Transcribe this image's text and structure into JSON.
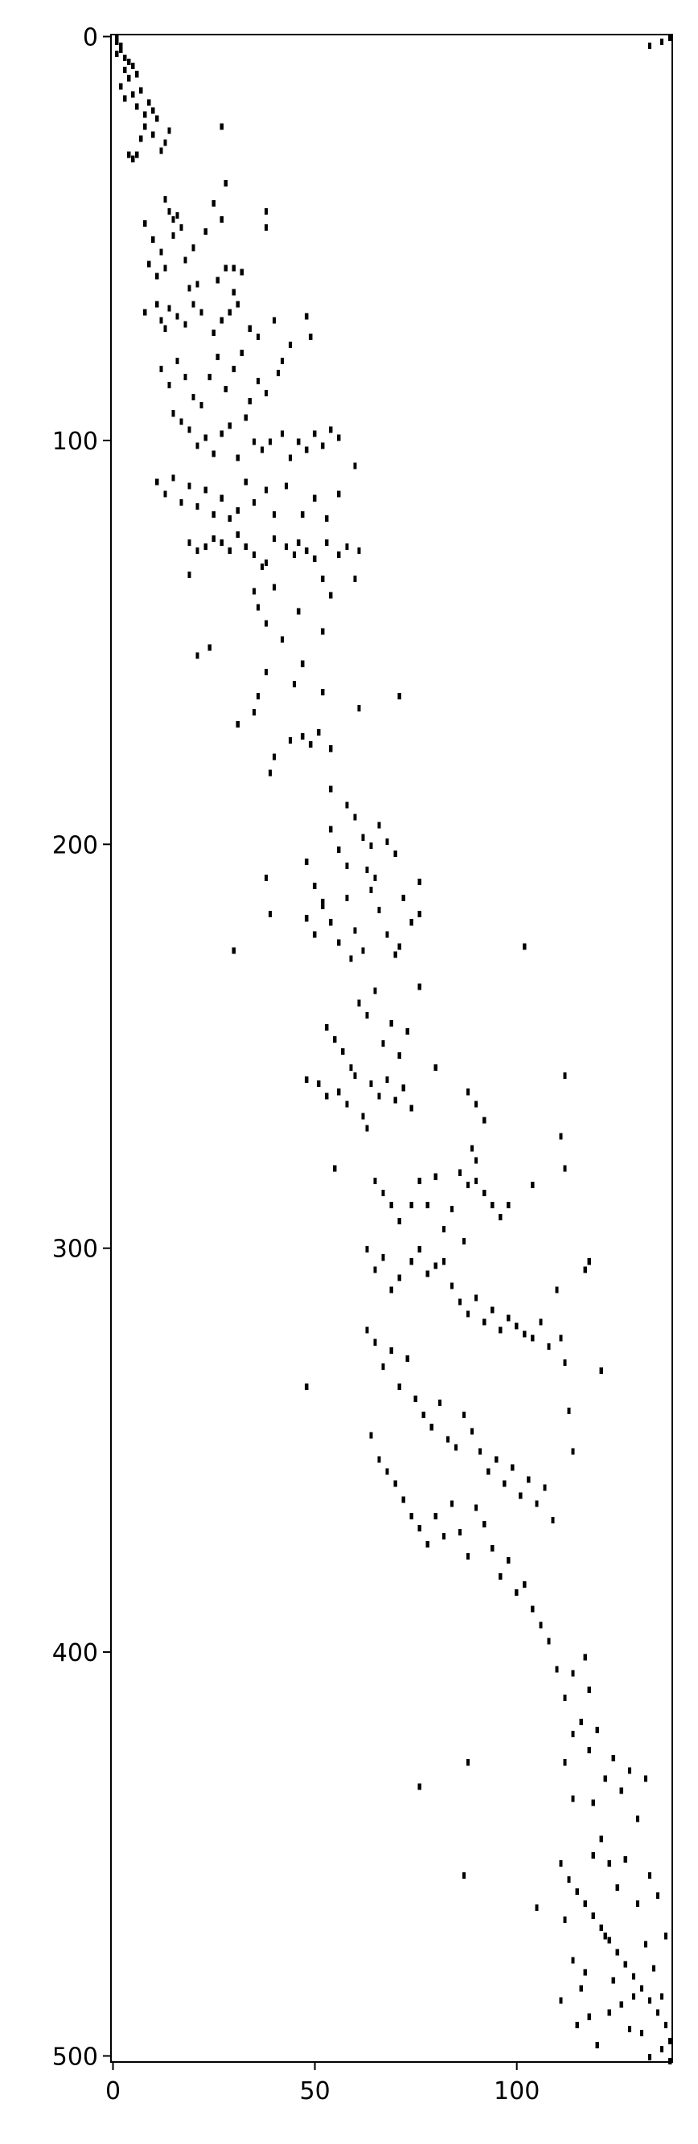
{
  "chart_data": {
    "type": "heatmap",
    "style": "sparsity pattern (spy plot)",
    "title": "",
    "xlabel": "",
    "ylabel": "",
    "n_rows": 502,
    "n_cols": 139,
    "xlim": [
      -0.5,
      138.5
    ],
    "ylim": [
      501.5,
      -0.5
    ],
    "x_ticks": [
      0,
      50,
      100
    ],
    "y_ticks": [
      0,
      100,
      200,
      300,
      400,
      500
    ],
    "x_tick_labels": [
      "0",
      "50",
      "100"
    ],
    "y_tick_labels": [
      "0",
      "100",
      "200",
      "300",
      "400",
      "500"
    ],
    "grid": false,
    "marker_color": "#000000",
    "background_color": "#ffffff",
    "note_nonzeros": "Each entry is [column, row] of a nonzero element, read approximately from the image.",
    "nonzeros": [
      [
        1,
        0
      ],
      [
        1,
        1
      ],
      [
        2,
        2
      ],
      [
        2,
        3
      ],
      [
        1,
        4
      ],
      [
        3,
        5
      ],
      [
        4,
        6
      ],
      [
        3,
        8
      ],
      [
        5,
        7
      ],
      [
        4,
        10
      ],
      [
        6,
        9
      ],
      [
        2,
        12
      ],
      [
        3,
        15
      ],
      [
        5,
        14
      ],
      [
        7,
        13
      ],
      [
        6,
        17
      ],
      [
        9,
        16
      ],
      [
        8,
        19
      ],
      [
        10,
        18
      ],
      [
        11,
        20
      ],
      [
        8,
        22
      ],
      [
        7,
        25
      ],
      [
        10,
        24
      ],
      [
        13,
        26
      ],
      [
        14,
        23
      ],
      [
        12,
        28
      ],
      [
        4,
        29
      ],
      [
        5,
        30
      ],
      [
        6,
        29
      ],
      [
        27,
        22
      ],
      [
        13,
        40
      ],
      [
        14,
        43
      ],
      [
        15,
        45
      ],
      [
        16,
        44
      ],
      [
        17,
        47
      ],
      [
        8,
        46
      ],
      [
        10,
        50
      ],
      [
        12,
        53
      ],
      [
        15,
        49
      ],
      [
        13,
        57
      ],
      [
        9,
        56
      ],
      [
        11,
        59
      ],
      [
        18,
        55
      ],
      [
        20,
        52
      ],
      [
        23,
        48
      ],
      [
        25,
        41
      ],
      [
        28,
        36
      ],
      [
        27,
        45
      ],
      [
        30,
        57
      ],
      [
        32,
        58
      ],
      [
        38,
        43
      ],
      [
        38,
        47
      ],
      [
        8,
        68
      ],
      [
        11,
        66
      ],
      [
        12,
        70
      ],
      [
        13,
        72
      ],
      [
        14,
        67
      ],
      [
        16,
        69
      ],
      [
        18,
        71
      ],
      [
        20,
        66
      ],
      [
        22,
        68
      ],
      [
        25,
        73
      ],
      [
        27,
        70
      ],
      [
        29,
        68
      ],
      [
        31,
        66
      ],
      [
        34,
        72
      ],
      [
        36,
        74
      ],
      [
        40,
        70
      ],
      [
        42,
        80
      ],
      [
        44,
        76
      ],
      [
        48,
        69
      ],
      [
        49,
        74
      ],
      [
        26,
        60
      ],
      [
        21,
        61
      ],
      [
        19,
        62
      ],
      [
        28,
        57
      ],
      [
        30,
        63
      ],
      [
        12,
        82
      ],
      [
        14,
        86
      ],
      [
        16,
        80
      ],
      [
        18,
        84
      ],
      [
        20,
        89
      ],
      [
        22,
        91
      ],
      [
        24,
        84
      ],
      [
        26,
        79
      ],
      [
        28,
        87
      ],
      [
        30,
        82
      ],
      [
        32,
        78
      ],
      [
        34,
        90
      ],
      [
        36,
        85
      ],
      [
        38,
        88
      ],
      [
        41,
        83
      ],
      [
        15,
        93
      ],
      [
        17,
        95
      ],
      [
        19,
        97
      ],
      [
        21,
        101
      ],
      [
        23,
        99
      ],
      [
        25,
        103
      ],
      [
        27,
        98
      ],
      [
        29,
        96
      ],
      [
        31,
        104
      ],
      [
        33,
        94
      ],
      [
        35,
        100
      ],
      [
        37,
        102
      ],
      [
        39,
        100
      ],
      [
        42,
        98
      ],
      [
        44,
        104
      ],
      [
        46,
        100
      ],
      [
        48,
        102
      ],
      [
        50,
        98
      ],
      [
        52,
        101
      ],
      [
        54,
        97
      ],
      [
        56,
        99
      ],
      [
        60,
        106
      ],
      [
        11,
        110
      ],
      [
        13,
        113
      ],
      [
        15,
        109
      ],
      [
        17,
        115
      ],
      [
        19,
        111
      ],
      [
        21,
        116
      ],
      [
        23,
        112
      ],
      [
        25,
        118
      ],
      [
        27,
        114
      ],
      [
        29,
        119
      ],
      [
        31,
        117
      ],
      [
        33,
        110
      ],
      [
        35,
        115
      ],
      [
        38,
        112
      ],
      [
        40,
        118
      ],
      [
        43,
        111
      ],
      [
        47,
        118
      ],
      [
        50,
        114
      ],
      [
        53,
        119
      ],
      [
        56,
        113
      ],
      [
        19,
        125
      ],
      [
        21,
        127
      ],
      [
        23,
        126
      ],
      [
        25,
        124
      ],
      [
        27,
        125
      ],
      [
        29,
        127
      ],
      [
        31,
        123
      ],
      [
        33,
        126
      ],
      [
        35,
        128
      ],
      [
        38,
        130
      ],
      [
        40,
        124
      ],
      [
        43,
        126
      ],
      [
        46,
        125
      ],
      [
        48,
        127
      ],
      [
        50,
        129
      ],
      [
        53,
        125
      ],
      [
        56,
        128
      ],
      [
        58,
        126
      ],
      [
        61,
        127
      ],
      [
        19,
        133
      ],
      [
        37,
        131
      ],
      [
        45,
        128
      ],
      [
        35,
        137
      ],
      [
        36,
        141
      ],
      [
        38,
        145
      ],
      [
        40,
        136
      ],
      [
        42,
        149
      ],
      [
        46,
        142
      ],
      [
        52,
        134
      ],
      [
        52,
        147
      ],
      [
        54,
        138
      ],
      [
        47,
        155
      ],
      [
        45,
        160
      ],
      [
        38,
        157
      ],
      [
        36,
        163
      ],
      [
        52,
        162
      ],
      [
        21,
        153
      ],
      [
        24,
        151
      ],
      [
        60,
        134
      ],
      [
        31,
        170
      ],
      [
        35,
        167
      ],
      [
        40,
        178
      ],
      [
        44,
        174
      ],
      [
        47,
        173
      ],
      [
        49,
        175
      ],
      [
        51,
        172
      ],
      [
        54,
        176
      ],
      [
        39,
        182
      ],
      [
        61,
        166
      ],
      [
        71,
        163
      ],
      [
        54,
        186
      ],
      [
        58,
        190
      ],
      [
        54,
        196
      ],
      [
        56,
        201
      ],
      [
        58,
        205
      ],
      [
        60,
        193
      ],
      [
        62,
        198
      ],
      [
        64,
        200
      ],
      [
        66,
        195
      ],
      [
        68,
        199
      ],
      [
        70,
        202
      ],
      [
        63,
        206
      ],
      [
        65,
        208
      ],
      [
        48,
        204
      ],
      [
        50,
        210
      ],
      [
        52,
        214
      ],
      [
        38,
        208
      ],
      [
        39,
        217
      ],
      [
        30,
        226
      ],
      [
        48,
        218
      ],
      [
        50,
        222
      ],
      [
        52,
        215
      ],
      [
        54,
        219
      ],
      [
        56,
        224
      ],
      [
        58,
        213
      ],
      [
        60,
        221
      ],
      [
        62,
        226
      ],
      [
        64,
        211
      ],
      [
        66,
        216
      ],
      [
        68,
        222
      ],
      [
        70,
        227
      ],
      [
        72,
        213
      ],
      [
        74,
        219
      ],
      [
        76,
        209
      ],
      [
        76,
        217
      ],
      [
        59,
        228
      ],
      [
        71,
        225
      ],
      [
        102,
        225
      ],
      [
        61,
        239
      ],
      [
        63,
        242
      ],
      [
        65,
        236
      ],
      [
        67,
        249
      ],
      [
        69,
        244
      ],
      [
        71,
        252
      ],
      [
        73,
        246
      ],
      [
        76,
        235
      ],
      [
        53,
        245
      ],
      [
        55,
        248
      ],
      [
        57,
        251
      ],
      [
        59,
        255
      ],
      [
        80,
        255
      ],
      [
        48,
        258
      ],
      [
        51,
        259
      ],
      [
        53,
        262
      ],
      [
        56,
        261
      ],
      [
        58,
        264
      ],
      [
        60,
        257
      ],
      [
        62,
        267
      ],
      [
        64,
        259
      ],
      [
        66,
        262
      ],
      [
        68,
        258
      ],
      [
        70,
        263
      ],
      [
        72,
        260
      ],
      [
        74,
        265
      ],
      [
        88,
        261
      ],
      [
        90,
        264
      ],
      [
        92,
        268
      ],
      [
        89,
        275
      ],
      [
        90,
        278
      ],
      [
        86,
        281
      ],
      [
        88,
        284
      ],
      [
        90,
        283
      ],
      [
        92,
        286
      ],
      [
        94,
        289
      ],
      [
        96,
        292
      ],
      [
        98,
        289
      ],
      [
        112,
        257
      ],
      [
        111,
        272
      ],
      [
        112,
        280
      ],
      [
        55,
        280
      ],
      [
        63,
        270
      ],
      [
        65,
        283
      ],
      [
        67,
        286
      ],
      [
        69,
        289
      ],
      [
        71,
        293
      ],
      [
        74,
        289
      ],
      [
        76,
        283
      ],
      [
        78,
        289
      ],
      [
        80,
        282
      ],
      [
        82,
        295
      ],
      [
        84,
        290
      ],
      [
        87,
        298
      ],
      [
        104,
        284
      ],
      [
        63,
        300
      ],
      [
        65,
        305
      ],
      [
        67,
        302
      ],
      [
        69,
        310
      ],
      [
        71,
        307
      ],
      [
        74,
        303
      ],
      [
        76,
        300
      ],
      [
        78,
        306
      ],
      [
        80,
        304
      ],
      [
        82,
        303
      ],
      [
        84,
        309
      ],
      [
        86,
        313
      ],
      [
        88,
        316
      ],
      [
        90,
        312
      ],
      [
        92,
        318
      ],
      [
        94,
        315
      ],
      [
        96,
        320
      ],
      [
        98,
        317
      ],
      [
        100,
        319
      ],
      [
        102,
        321
      ],
      [
        104,
        322
      ],
      [
        106,
        318
      ],
      [
        108,
        324
      ],
      [
        110,
        310
      ],
      [
        111,
        322
      ],
      [
        112,
        328
      ],
      [
        113,
        340
      ],
      [
        114,
        350
      ],
      [
        117,
        305
      ],
      [
        118,
        303
      ],
      [
        121,
        330
      ],
      [
        63,
        320
      ],
      [
        65,
        323
      ],
      [
        67,
        329
      ],
      [
        69,
        325
      ],
      [
        71,
        334
      ],
      [
        73,
        327
      ],
      [
        75,
        337
      ],
      [
        77,
        341
      ],
      [
        79,
        344
      ],
      [
        81,
        338
      ],
      [
        83,
        347
      ],
      [
        85,
        349
      ],
      [
        87,
        341
      ],
      [
        89,
        345
      ],
      [
        91,
        350
      ],
      [
        93,
        355
      ],
      [
        95,
        352
      ],
      [
        97,
        358
      ],
      [
        99,
        354
      ],
      [
        101,
        361
      ],
      [
        103,
        357
      ],
      [
        105,
        363
      ],
      [
        107,
        359
      ],
      [
        109,
        367
      ],
      [
        48,
        334
      ],
      [
        64,
        346
      ],
      [
        66,
        352
      ],
      [
        68,
        355
      ],
      [
        70,
        358
      ],
      [
        72,
        362
      ],
      [
        74,
        366
      ],
      [
        76,
        369
      ],
      [
        78,
        373
      ],
      [
        80,
        366
      ],
      [
        82,
        371
      ],
      [
        84,
        363
      ],
      [
        86,
        370
      ],
      [
        88,
        376
      ],
      [
        90,
        364
      ],
      [
        92,
        368
      ],
      [
        94,
        374
      ],
      [
        96,
        381
      ],
      [
        98,
        377
      ],
      [
        100,
        385
      ],
      [
        102,
        383
      ],
      [
        104,
        389
      ],
      [
        106,
        393
      ],
      [
        108,
        397
      ],
      [
        110,
        404
      ],
      [
        112,
        411
      ],
      [
        114,
        405
      ],
      [
        117,
        401
      ],
      [
        118,
        409
      ],
      [
        114,
        420
      ],
      [
        116,
        417
      ],
      [
        118,
        424
      ],
      [
        120,
        419
      ],
      [
        122,
        431
      ],
      [
        124,
        426
      ],
      [
        126,
        434
      ],
      [
        128,
        429
      ],
      [
        130,
        441
      ],
      [
        112,
        427
      ],
      [
        114,
        436
      ],
      [
        119,
        437
      ],
      [
        121,
        446
      ],
      [
        123,
        452
      ],
      [
        132,
        431
      ],
      [
        88,
        427
      ],
      [
        76,
        433
      ],
      [
        87,
        455
      ],
      [
        111,
        452
      ],
      [
        113,
        456
      ],
      [
        115,
        459
      ],
      [
        117,
        462
      ],
      [
        119,
        465
      ],
      [
        121,
        468
      ],
      [
        123,
        471
      ],
      [
        125,
        474
      ],
      [
        127,
        477
      ],
      [
        129,
        480
      ],
      [
        131,
        483
      ],
      [
        133,
        486
      ],
      [
        135,
        489
      ],
      [
        137,
        492
      ],
      [
        112,
        466
      ],
      [
        114,
        476
      ],
      [
        116,
        483
      ],
      [
        118,
        490
      ],
      [
        120,
        497
      ],
      [
        122,
        470
      ],
      [
        124,
        481
      ],
      [
        126,
        487
      ],
      [
        128,
        493
      ],
      [
        130,
        462
      ],
      [
        132,
        472
      ],
      [
        134,
        478
      ],
      [
        136,
        485
      ],
      [
        138,
        496
      ],
      [
        111,
        486
      ],
      [
        117,
        479
      ],
      [
        125,
        458
      ],
      [
        133,
        455
      ],
      [
        119,
        450
      ],
      [
        127,
        451
      ],
      [
        135,
        460
      ],
      [
        137,
        470
      ],
      [
        133,
        500
      ],
      [
        136,
        498
      ],
      [
        138,
        501
      ],
      [
        105,
        463
      ],
      [
        115,
        492
      ],
      [
        131,
        494
      ],
      [
        129,
        485
      ],
      [
        123,
        489
      ],
      [
        133,
        2
      ],
      [
        136,
        1
      ],
      [
        138,
        0
      ]
    ]
  }
}
